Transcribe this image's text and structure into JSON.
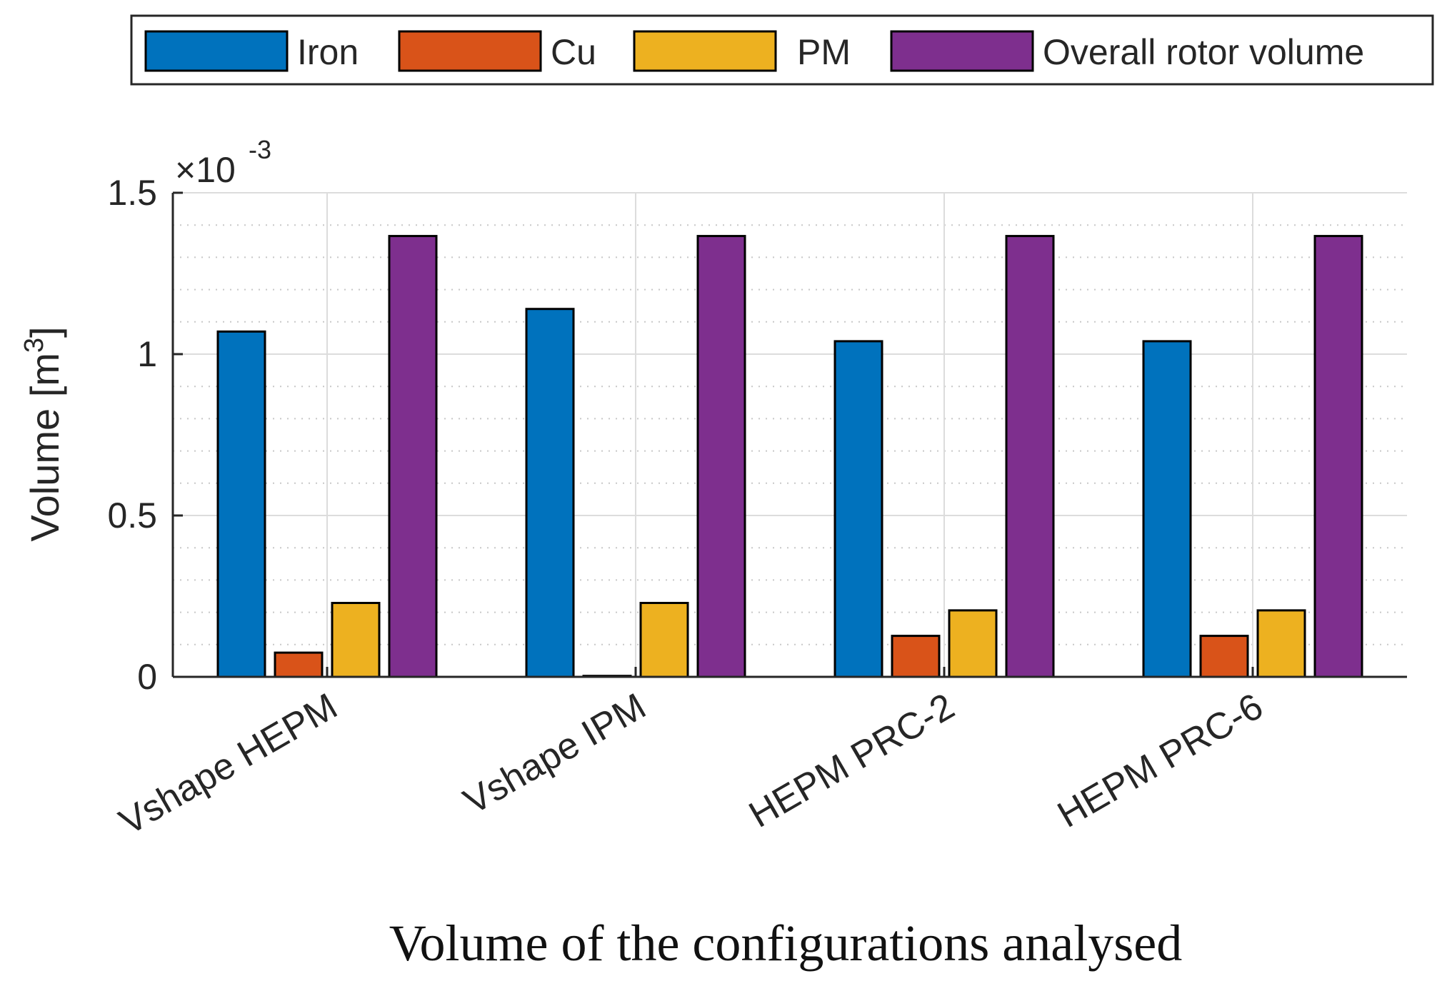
{
  "chart_data": {
    "type": "bar",
    "title": "",
    "xlabel": "Volume of the configurations analysed",
    "ylabel": "Volume [m",
    "ylabel_superscript": "3",
    "ylabel_close": "]",
    "exponent_label_prefix": "×10",
    "exponent_label_power": "-3",
    "ylim": [
      0,
      1.5
    ],
    "yticks": [
      {
        "value": 0,
        "label": "0"
      },
      {
        "value": 0.5,
        "label": "0.5"
      },
      {
        "value": 1,
        "label": "1"
      },
      {
        "value": 1.5,
        "label": "1.5"
      }
    ],
    "minor_grid": true,
    "major_grid": true,
    "legend_position": "top-outside",
    "categories": [
      "Vshape HEPM",
      "Vshape IPM",
      "HEPM PRC-2",
      "HEPM PRC-6"
    ],
    "series": [
      {
        "name": "Iron",
        "color": "#0072BD",
        "values": [
          1.07,
          1.14,
          1.04,
          1.04
        ]
      },
      {
        "name": "Cu",
        "color": "#D95319",
        "values": [
          0.075,
          0.003,
          0.127,
          0.127
        ]
      },
      {
        "name": "PM",
        "color": "#EDB120",
        "values": [
          0.229,
          0.229,
          0.206,
          0.206
        ]
      },
      {
        "name": "Overall rotor volume",
        "color": "#7E2F8E",
        "values": [
          1.366,
          1.366,
          1.366,
          1.366
        ]
      }
    ]
  }
}
